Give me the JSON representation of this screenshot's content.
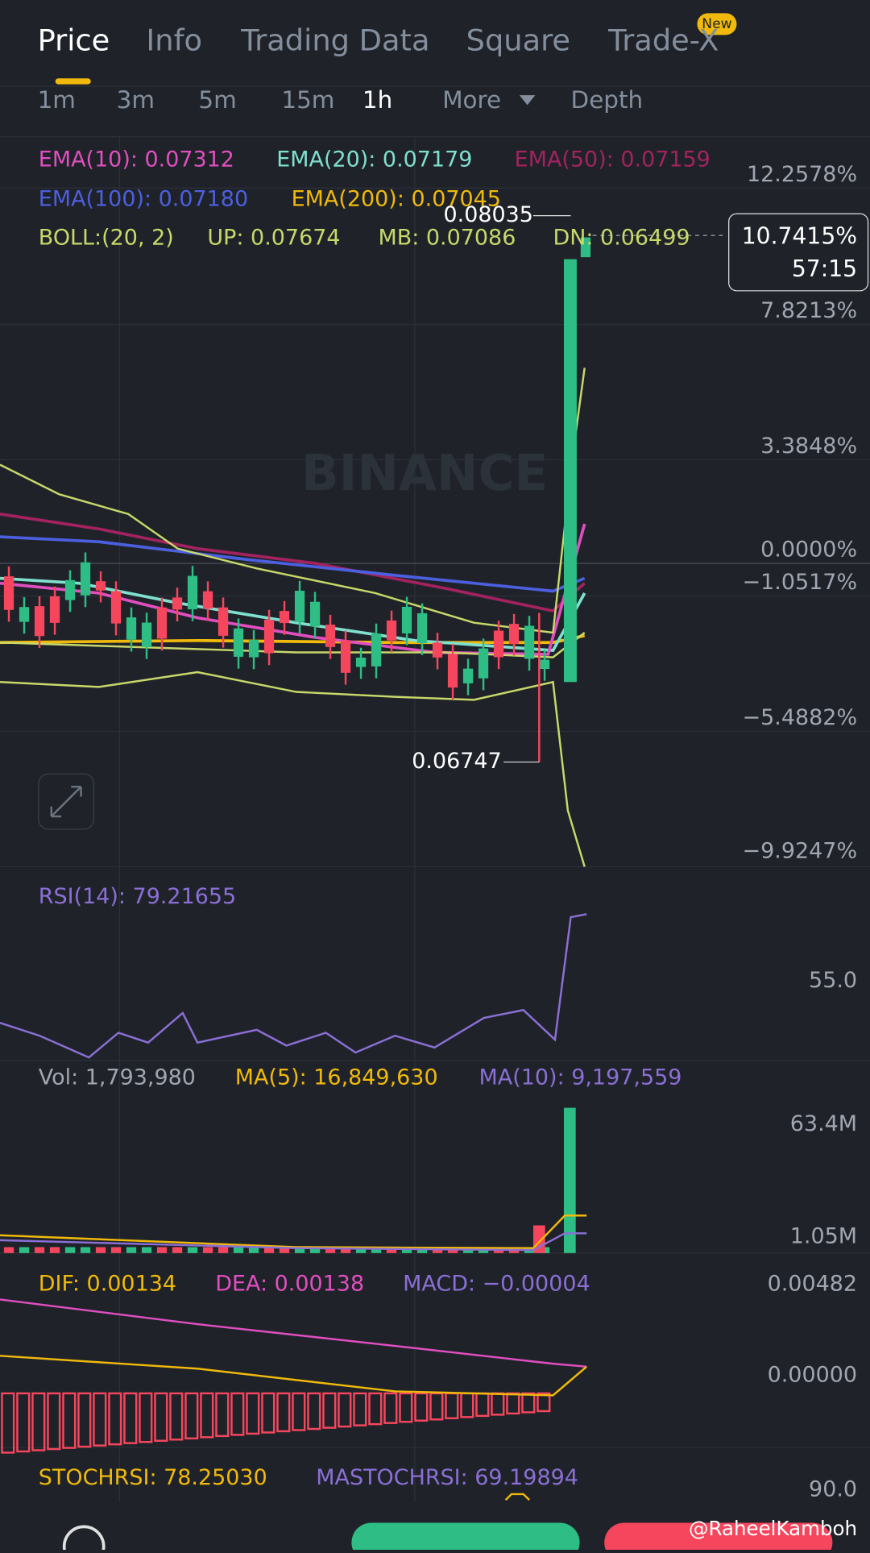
{
  "tabs": [
    "Price",
    "Info",
    "Trading Data",
    "Square",
    "Trade-X"
  ],
  "badge": "New",
  "intervals": [
    "1m",
    "3m",
    "5m",
    "15m",
    "1h",
    "More",
    "Depth"
  ],
  "main": {
    "ema": [
      "EMA(10): 0.07312",
      "EMA(20): 0.07179",
      "EMA(50): 0.07159",
      "EMA(100): 0.07180",
      "EMA(200): 0.07045"
    ],
    "boll": [
      "BOLL:(20, 2)",
      "UP: 0.07674",
      "MB: 0.07086",
      "DN: 0.06499"
    ],
    "axis": [
      "12.2578%",
      "7.8213%",
      "3.3848%",
      "0.0000%",
      "−1.0517%",
      "−5.4882%",
      "−9.9247%"
    ],
    "current": [
      "10.7415%",
      "57:15"
    ],
    "high": "0.08035",
    "low": "0.06747",
    "watermark": "BINANCE"
  },
  "rsi": {
    "label": "RSI(14): 79.21655",
    "axis": "55.0"
  },
  "vol": {
    "labels": [
      "Vol: 1,793,980",
      "MA(5): 16,849,630",
      "MA(10): 9,197,559"
    ],
    "axis": [
      "63.4M",
      "1.05M"
    ]
  },
  "macd": {
    "labels": [
      "DIF: 0.00134",
      "DEA: 0.00138",
      "MACD: −0.00004"
    ],
    "axis": [
      "0.00482",
      "0.00000"
    ]
  },
  "stoch": {
    "labels": [
      "STOCHRSI: 78.25030",
      "MASTOCHRSI: 69.19894"
    ],
    "axis": "90.0"
  },
  "credit": "@RaheelKamboh"
}
